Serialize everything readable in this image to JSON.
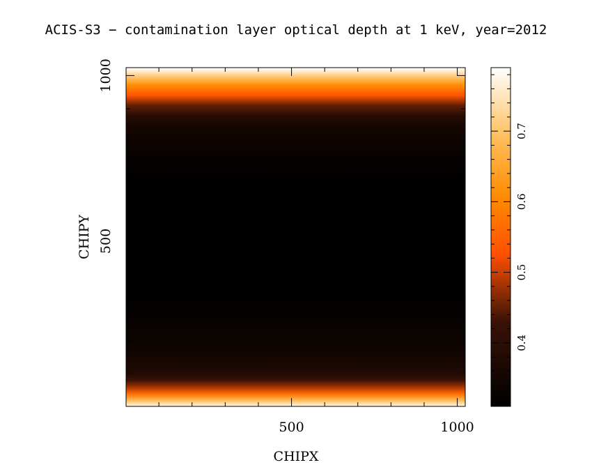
{
  "chart_data": {
    "type": "heatmap",
    "title": "ACIS-S3 − contamination layer optical depth at 1 keV, year=2012",
    "xlabel": "CHIPX",
    "ylabel": "CHIPY",
    "xlim": [
      1,
      1024
    ],
    "ylim": [
      1,
      1024
    ],
    "x_major_ticks": [
      500,
      1000
    ],
    "x_minor_ticks": [
      100,
      200,
      300,
      400,
      600,
      700,
      800,
      900
    ],
    "y_major_ticks": [
      500,
      1000
    ],
    "y_minor_ticks": [
      100,
      200,
      300,
      400,
      600,
      700,
      800,
      900
    ],
    "variation": "depends on CHIPY only; uniform along CHIPX",
    "profile": {
      "chipy": [
        1,
        20,
        40,
        60,
        80,
        100,
        130,
        160,
        200,
        260,
        350,
        500,
        650,
        740,
        800,
        850,
        880,
        910,
        940,
        970,
        990,
        1010,
        1024
      ],
      "value": [
        0.78,
        0.68,
        0.56,
        0.48,
        0.43,
        0.38,
        0.36,
        0.345,
        0.335,
        0.325,
        0.31,
        0.305,
        0.31,
        0.32,
        0.335,
        0.36,
        0.39,
        0.45,
        0.53,
        0.61,
        0.68,
        0.75,
        0.79
      ]
    },
    "colorbar": {
      "range": [
        0.31,
        0.79
      ],
      "tick_labels": [
        "0.4",
        "0.5",
        "0.6",
        "0.7"
      ],
      "tick_values": [
        0.4,
        0.5,
        0.6,
        0.7
      ],
      "minor_tick_values": [
        0.32,
        0.34,
        0.36,
        0.38,
        0.42,
        0.44,
        0.46,
        0.48,
        0.52,
        0.54,
        0.56,
        0.58,
        0.62,
        0.64,
        0.66,
        0.68,
        0.72,
        0.74,
        0.76,
        0.78
      ],
      "colormap": "heat",
      "colormap_stops": [
        {
          "v": 0.0,
          "color": "#000000"
        },
        {
          "v": 0.25,
          "color": "#3a1206"
        },
        {
          "v": 0.45,
          "color": "#ff5000"
        },
        {
          "v": 0.62,
          "color": "#ff8c00"
        },
        {
          "v": 0.8,
          "color": "#ffc060"
        },
        {
          "v": 1.0,
          "color": "#ffffff"
        }
      ]
    }
  }
}
